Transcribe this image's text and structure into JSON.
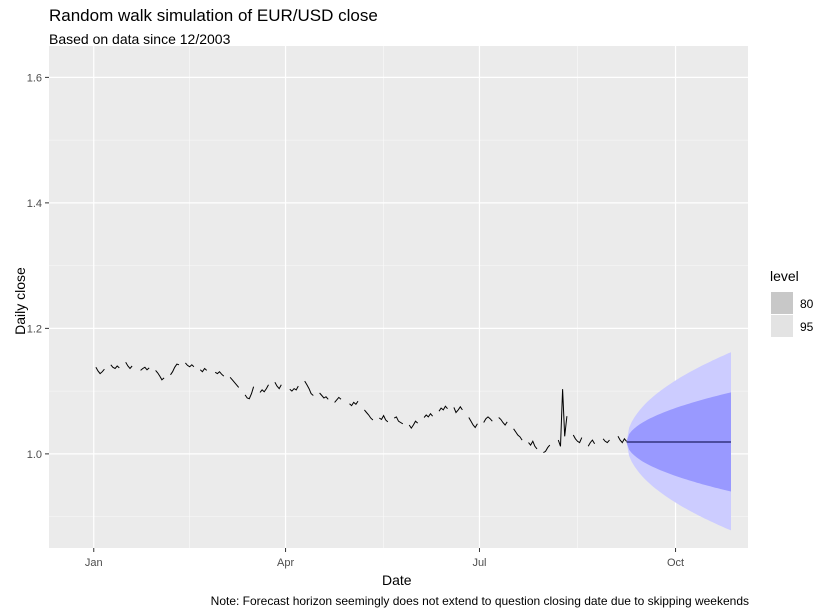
{
  "chart_data": {
    "type": "line",
    "title": "Random walk simulation of EUR/USD close",
    "subtitle": "Based on data since 12/2003",
    "xlabel": "Date",
    "ylabel": "Daily close",
    "caption": "Note: Forecast horizon seemingly does not extend to question closing date due to skipping weekends",
    "x_ticks": [
      "Jan",
      "Apr",
      "Jul",
      "Oct"
    ],
    "y_ticks": [
      1.0,
      1.2,
      1.4,
      1.6
    ],
    "xlim": [
      "2022-12-11",
      "2023-11-04"
    ],
    "ylim": [
      0.85,
      1.65
    ],
    "grid": true,
    "legend": {
      "title": "level",
      "position": "right",
      "entries": [
        {
          "label": "80",
          "color": "#c8c8c8"
        },
        {
          "label": "95",
          "color": "#e3e3e3"
        }
      ]
    },
    "colors": {
      "panel": "#ebebeb",
      "band80": "#9999ff",
      "band95": "#ccccff",
      "line": "#000000",
      "forecast_line": "#00003c"
    },
    "series": [
      {
        "values": [
          [
            "2023-01-02",
            1.138
          ],
          [
            "2023-01-03",
            1.132
          ],
          [
            "2023-01-04",
            1.128
          ],
          [
            "2023-01-05",
            1.131
          ],
          [
            "2023-01-06",
            1.135
          ],
          [
            "2023-01-09",
            1.142
          ],
          [
            "2023-01-10",
            1.138
          ],
          [
            "2023-01-11",
            1.136
          ],
          [
            "2023-01-12",
            1.14
          ],
          [
            "2023-01-13",
            1.137
          ],
          [
            "2023-01-16",
            1.146
          ],
          [
            "2023-01-17",
            1.14
          ],
          [
            "2023-01-18",
            1.136
          ],
          [
            "2023-01-19",
            1.14
          ],
          [
            "2023-01-23",
            1.133
          ],
          [
            "2023-01-24",
            1.136
          ],
          [
            "2023-01-25",
            1.138
          ],
          [
            "2023-01-26",
            1.134
          ],
          [
            "2023-01-27",
            1.137
          ],
          [
            "2023-01-30",
            1.133
          ],
          [
            "2023-01-31",
            1.129
          ],
          [
            "2023-02-01",
            1.124
          ],
          [
            "2023-02-02",
            1.118
          ],
          [
            "2023-02-03",
            1.121
          ],
          [
            "2023-02-06",
            1.126
          ],
          [
            "2023-02-07",
            1.131
          ],
          [
            "2023-02-08",
            1.138
          ],
          [
            "2023-02-09",
            1.143
          ],
          [
            "2023-02-10",
            1.142
          ],
          [
            "2023-02-13",
            1.145
          ],
          [
            "2023-02-14",
            1.141
          ],
          [
            "2023-02-15",
            1.139
          ],
          [
            "2023-02-16",
            1.142
          ],
          [
            "2023-02-17",
            1.139
          ],
          [
            "2023-02-20",
            1.134
          ],
          [
            "2023-02-21",
            1.131
          ],
          [
            "2023-02-22",
            1.136
          ],
          [
            "2023-02-23",
            1.133
          ],
          [
            "2023-02-27",
            1.13
          ],
          [
            "2023-02-28",
            1.128
          ],
          [
            "2023-03-01",
            1.131
          ],
          [
            "2023-03-02",
            1.127
          ],
          [
            "2023-03-03",
            1.124
          ],
          [
            "2023-03-06",
            1.122
          ],
          [
            "2023-03-07",
            1.118
          ],
          [
            "2023-03-08",
            1.114
          ],
          [
            "2023-03-09",
            1.11
          ],
          [
            "2023-03-10",
            1.106
          ],
          [
            "2023-03-13",
            1.094
          ],
          [
            "2023-03-14",
            1.089
          ],
          [
            "2023-03-15",
            1.088
          ],
          [
            "2023-03-16",
            1.096
          ],
          [
            "2023-03-17",
            1.107
          ],
          [
            "2023-03-20",
            1.098
          ],
          [
            "2023-03-21",
            1.102
          ],
          [
            "2023-03-22",
            1.099
          ],
          [
            "2023-03-23",
            1.104
          ],
          [
            "2023-03-24",
            1.11
          ],
          [
            "2023-03-27",
            1.114
          ],
          [
            "2023-03-28",
            1.108
          ],
          [
            "2023-03-29",
            1.104
          ],
          [
            "2023-03-30",
            1.11
          ],
          [
            "2023-04-03",
            1.103
          ],
          [
            "2023-04-04",
            1.1
          ],
          [
            "2023-04-05",
            1.104
          ],
          [
            "2023-04-06",
            1.102
          ],
          [
            "2023-04-07",
            1.108
          ],
          [
            "2023-04-10",
            1.116
          ],
          [
            "2023-04-11",
            1.11
          ],
          [
            "2023-04-12",
            1.104
          ],
          [
            "2023-04-13",
            1.096
          ],
          [
            "2023-04-14",
            1.093
          ],
          [
            "2023-04-17",
            1.097
          ],
          [
            "2023-04-18",
            1.093
          ],
          [
            "2023-04-19",
            1.089
          ],
          [
            "2023-04-20",
            1.091
          ],
          [
            "2023-04-21",
            1.087
          ],
          [
            "2023-04-24",
            1.082
          ],
          [
            "2023-04-25",
            1.086
          ],
          [
            "2023-04-26",
            1.09
          ],
          [
            "2023-04-27",
            1.087
          ],
          [
            "2023-05-01",
            1.08
          ],
          [
            "2023-05-02",
            1.077
          ],
          [
            "2023-05-03",
            1.082
          ],
          [
            "2023-05-04",
            1.079
          ],
          [
            "2023-05-05",
            1.084
          ],
          [
            "2023-05-08",
            1.07
          ],
          [
            "2023-05-09",
            1.066
          ],
          [
            "2023-05-10",
            1.062
          ],
          [
            "2023-05-11",
            1.057
          ],
          [
            "2023-05-12",
            1.054
          ],
          [
            "2023-05-15",
            1.057
          ],
          [
            "2023-05-16",
            1.055
          ],
          [
            "2023-05-17",
            1.061
          ],
          [
            "2023-05-18",
            1.054
          ],
          [
            "2023-05-19",
            1.051
          ],
          [
            "2023-05-22",
            1.057
          ],
          [
            "2023-05-23",
            1.059
          ],
          [
            "2023-05-24",
            1.052
          ],
          [
            "2023-05-25",
            1.05
          ],
          [
            "2023-05-26",
            1.048
          ],
          [
            "2023-05-29",
            1.046
          ],
          [
            "2023-05-30",
            1.041
          ],
          [
            "2023-05-31",
            1.046
          ],
          [
            "2023-06-01",
            1.052
          ],
          [
            "2023-06-02",
            1.049
          ],
          [
            "2023-06-05",
            1.058
          ],
          [
            "2023-06-06",
            1.062
          ],
          [
            "2023-06-07",
            1.059
          ],
          [
            "2023-06-08",
            1.064
          ],
          [
            "2023-06-09",
            1.06
          ],
          [
            "2023-06-12",
            1.068
          ],
          [
            "2023-06-13",
            1.073
          ],
          [
            "2023-06-14",
            1.07
          ],
          [
            "2023-06-15",
            1.076
          ],
          [
            "2023-06-16",
            1.072
          ],
          [
            "2023-06-19",
            1.074
          ],
          [
            "2023-06-20",
            1.066
          ],
          [
            "2023-06-21",
            1.07
          ],
          [
            "2023-06-22",
            1.075
          ],
          [
            "2023-06-23",
            1.07
          ],
          [
            "2023-06-26",
            1.058
          ],
          [
            "2023-06-27",
            1.052
          ],
          [
            "2023-06-28",
            1.046
          ],
          [
            "2023-06-29",
            1.042
          ],
          [
            "2023-06-30",
            1.048
          ],
          [
            "2023-07-03",
            1.05
          ],
          [
            "2023-07-04",
            1.056
          ],
          [
            "2023-07-05",
            1.059
          ],
          [
            "2023-07-06",
            1.056
          ],
          [
            "2023-07-07",
            1.052
          ],
          [
            "2023-07-10",
            1.058
          ],
          [
            "2023-07-11",
            1.055
          ],
          [
            "2023-07-12",
            1.05
          ],
          [
            "2023-07-13",
            1.046
          ],
          [
            "2023-07-14",
            1.051
          ],
          [
            "2023-07-17",
            1.04
          ],
          [
            "2023-07-18",
            1.035
          ],
          [
            "2023-07-19",
            1.03
          ],
          [
            "2023-07-20",
            1.027
          ],
          [
            "2023-07-21",
            1.022
          ],
          [
            "2023-07-24",
            1.018
          ],
          [
            "2023-07-25",
            1.014
          ],
          [
            "2023-07-26",
            1.02
          ],
          [
            "2023-07-27",
            1.012
          ],
          [
            "2023-07-28",
            1.008
          ],
          [
            "2023-07-31",
            1.002
          ],
          [
            "2023-08-01",
            1.004
          ],
          [
            "2023-08-02",
            1.01
          ],
          [
            "2023-08-03",
            1.014
          ],
          [
            "2023-08-07",
            1.022
          ],
          [
            "2023-08-08",
            1.012
          ],
          [
            "2023-08-09",
            1.103
          ],
          [
            "2023-08-10",
            1.028
          ],
          [
            "2023-08-11",
            1.06
          ],
          [
            "2023-08-14",
            1.03
          ],
          [
            "2023-08-15",
            1.024
          ],
          [
            "2023-08-16",
            1.02
          ],
          [
            "2023-08-17",
            1.018
          ],
          [
            "2023-08-18",
            1.026
          ],
          [
            "2023-08-21",
            1.012
          ],
          [
            "2023-08-22",
            1.018
          ],
          [
            "2023-08-23",
            1.022
          ],
          [
            "2023-08-24",
            1.016
          ],
          [
            "2023-08-28",
            1.024
          ],
          [
            "2023-08-29",
            1.02
          ],
          [
            "2023-08-30",
            1.018
          ],
          [
            "2023-08-31",
            1.022
          ],
          [
            "2023-09-04",
            1.028
          ],
          [
            "2023-09-05",
            1.022
          ],
          [
            "2023-09-06",
            1.018
          ],
          [
            "2023-09-07",
            1.024
          ],
          [
            "2023-09-08",
            1.02
          ]
        ]
      }
    ],
    "forecast": {
      "start": "2023-09-08",
      "end": "2023-10-27",
      "mean": 1.019,
      "band80_end": [
        0.94,
        1.098
      ],
      "band95_end": [
        0.878,
        1.162
      ]
    }
  }
}
